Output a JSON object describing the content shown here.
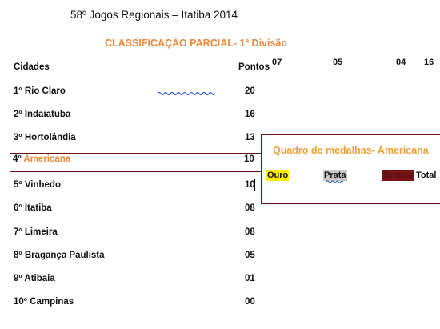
{
  "document": {
    "title": "58º Jogos Regionais – Itatiba 2014",
    "subtitle": "CLASSIFICAÇÃO PARCIAL- 1ª Divisão",
    "col_city": "Cidades",
    "col_points": "Pontos"
  },
  "standings": [
    {
      "rank": "1º",
      "city": "Rio Claro",
      "points": "20"
    },
    {
      "rank": "2º",
      "city": "Indaiatuba",
      "points": "16"
    },
    {
      "rank": "3º",
      "city": "Hortolândia",
      "points": "13"
    },
    {
      "rank": "4º",
      "city": "Americana",
      "points": "10"
    },
    {
      "rank": "5º",
      "city": "Vinhedo",
      "points": "10"
    },
    {
      "rank": "6º",
      "city": "Itatiba",
      "points": "08"
    },
    {
      "rank": "7º",
      "city": "Limeira",
      "points": "08"
    },
    {
      "rank": "8º",
      "city": "Bragança Paulista",
      "points": "05"
    },
    {
      "rank": "9º",
      "city": "Atibaia",
      "points": "01"
    },
    {
      "rank": "10º",
      "city": "Campinas",
      "points": "00"
    }
  ],
  "medals": {
    "title": "Quadro de medalhas- Americana",
    "labels": {
      "gold": "Ouro",
      "silver": "Prata",
      "bronze": "Bronze",
      "total": "Total"
    },
    "values": {
      "gold": "07",
      "silver": "05",
      "bronze": "04",
      "total": "16"
    }
  },
  "colors": {
    "accent": "#ee8a3a",
    "frame": "#6b1416",
    "gold": "#ffee00",
    "silver": "#c8c8c8",
    "bronze": "#7a1414"
  }
}
